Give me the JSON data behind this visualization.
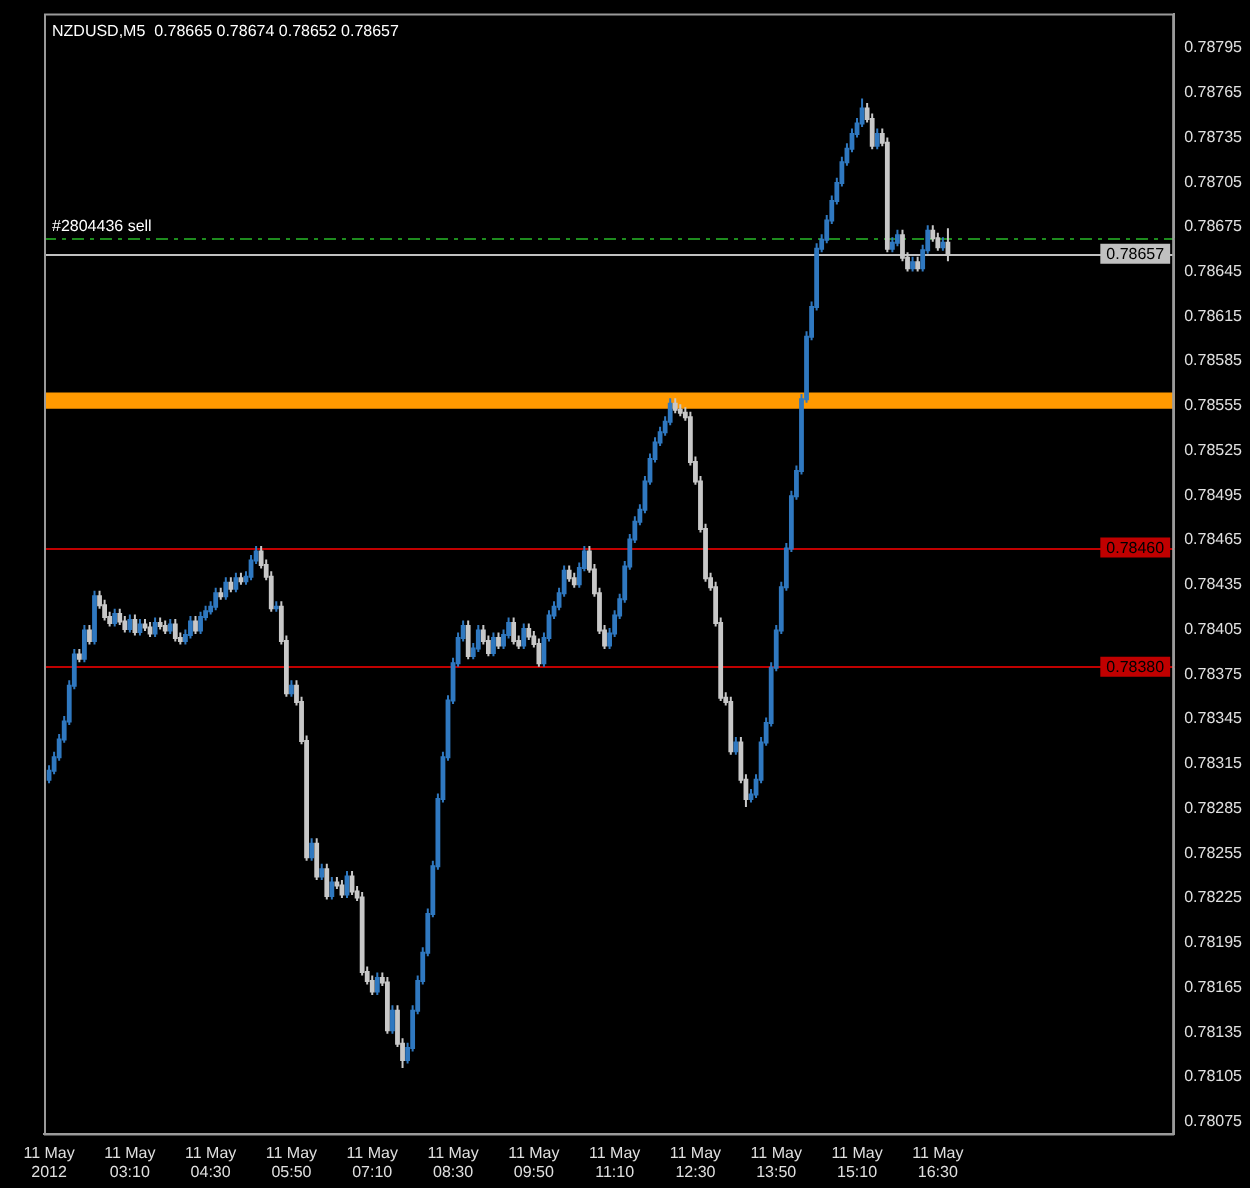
{
  "chart_data": {
    "type": "candlestick",
    "title": "NZDUSD,M5  0.78665 0.78674 0.78652 0.78657",
    "xlim": [
      "2012-05-11T01:45",
      "2012-05-11T20:24"
    ],
    "xticks": [
      {
        "value": "2012-05-11T01:50",
        "label": "11 May 2012"
      },
      {
        "value": "2012-05-11T03:10",
        "label": "11 May 03:10"
      },
      {
        "value": "2012-05-11T04:30",
        "label": "11 May 04:30"
      },
      {
        "value": "2012-05-11T05:50",
        "label": "11 May 05:50"
      },
      {
        "value": "2012-05-11T07:10",
        "label": "11 May 07:10"
      },
      {
        "value": "2012-05-11T08:30",
        "label": "11 May 08:30"
      },
      {
        "value": "2012-05-11T09:50",
        "label": "11 May 09:50"
      },
      {
        "value": "2012-05-11T11:10",
        "label": "11 May 11:10"
      },
      {
        "value": "2012-05-11T12:30",
        "label": "11 May 12:30"
      },
      {
        "value": "2012-05-11T13:50",
        "label": "11 May 13:50"
      },
      {
        "value": "2012-05-11T15:10",
        "label": "11 May 15:10"
      },
      {
        "value": "2012-05-11T16:30",
        "label": "11 May 16:30"
      }
    ],
    "ylim": [
      0.78067,
      0.78818
    ],
    "yticks": [
      0.78075,
      0.78105,
      0.78135,
      0.78165,
      0.78195,
      0.78225,
      0.78255,
      0.78285,
      0.78315,
      0.78345,
      0.78375,
      0.78405,
      0.78435,
      0.78465,
      0.78495,
      0.78525,
      0.78555,
      0.78585,
      0.78615,
      0.78645,
      0.78675,
      0.78705,
      0.78735,
      0.78765,
      0.78795
    ],
    "ref_lines": [
      {
        "axis": "y",
        "value": 0.78667,
        "label": "#2804436 sell",
        "color": "#1e8c1e",
        "line_style": "dashed"
      },
      {
        "axis": "y",
        "value": 0.78657,
        "label": "0.78657",
        "color": "#c0c0c0"
      },
      {
        "axis": "y",
        "value": 0.7846,
        "label": "0.78460",
        "color": "#c00000"
      },
      {
        "axis": "y",
        "value": 0.7838,
        "label": "0.78380",
        "color": "#c00000"
      }
    ],
    "bands": [
      {
        "axis": "y",
        "from": 0.78553,
        "to": 0.78564,
        "color": "#ff9900"
      }
    ],
    "series": [
      {
        "color": "#2f78c0",
        "x": [
          "2012-05-11T01:50",
          "2012-05-11T01:55",
          "2012-05-11T02:00",
          "2012-05-11T02:05",
          "2012-05-11T02:10",
          "2012-05-11T02:15",
          "2012-05-11T02:25",
          "2012-05-11T02:35",
          "2012-05-11T02:55",
          "2012-05-11T03:10",
          "2012-05-11T03:20",
          "2012-05-11T03:35",
          "2012-05-11T03:50",
          "2012-05-11T04:05",
          "2012-05-11T04:10",
          "2012-05-11T04:20",
          "2012-05-11T04:25",
          "2012-05-11T04:30",
          "2012-05-11T04:35",
          "2012-05-11T04:45",
          "2012-05-11T04:55",
          "2012-05-11T05:05",
          "2012-05-11T05:10",
          "2012-05-11T05:15",
          "2012-05-11T05:35",
          "2012-05-11T05:50",
          "2012-05-11T06:10",
          "2012-05-11T06:20",
          "2012-05-11T06:30",
          "2012-05-11T06:45",
          "2012-05-11T07:15",
          "2012-05-11T07:30",
          "2012-05-11T07:45",
          "2012-05-11T07:50",
          "2012-05-11T07:55",
          "2012-05-11T08:00",
          "2012-05-11T08:05",
          "2012-05-11T08:10",
          "2012-05-11T08:15",
          "2012-05-11T08:20",
          "2012-05-11T08:25",
          "2012-05-11T08:30",
          "2012-05-11T08:35",
          "2012-05-11T08:40",
          "2012-05-11T08:50",
          "2012-05-11T08:55",
          "2012-05-11T09:10",
          "2012-05-11T09:20",
          "2012-05-11T09:25",
          "2012-05-11T09:40",
          "2012-05-11T10:00",
          "2012-05-11T10:05",
          "2012-05-11T10:10",
          "2012-05-11T10:15",
          "2012-05-11T10:20",
          "2012-05-11T10:35",
          "2012-05-11T10:40",
          "2012-05-11T11:05",
          "2012-05-11T11:10",
          "2012-05-11T11:15",
          "2012-05-11T11:20",
          "2012-05-11T11:25",
          "2012-05-11T11:30",
          "2012-05-11T11:35",
          "2012-05-11T11:40",
          "2012-05-11T11:45",
          "2012-05-11T11:50",
          "2012-05-11T11:55",
          "2012-05-11T12:00",
          "2012-05-11T12:05",
          "2012-05-11T13:10",
          "2012-05-11T13:25",
          "2012-05-11T13:30",
          "2012-05-11T13:35",
          "2012-05-11T13:40",
          "2012-05-11T13:45",
          "2012-05-11T13:50",
          "2012-05-11T13:55",
          "2012-05-11T14:00",
          "2012-05-11T14:05",
          "2012-05-11T14:10",
          "2012-05-11T14:15",
          "2012-05-11T14:20",
          "2012-05-11T14:25",
          "2012-05-11T14:30",
          "2012-05-11T14:35",
          "2012-05-11T14:40",
          "2012-05-11T14:45",
          "2012-05-11T14:50",
          "2012-05-11T14:55",
          "2012-05-11T15:00",
          "2012-05-11T15:05",
          "2012-05-11T15:10",
          "2012-05-11T15:15",
          "2012-05-11T15:30",
          "2012-05-11T15:45",
          "2012-05-11T15:50",
          "2012-05-11T16:05",
          "2012-05-11T16:15",
          "2012-05-11T16:20",
          "2012-05-11T16:35"
        ],
        "ohlc": [
          [
            0.78305,
            0.78314,
            0.78302,
            0.78311
          ],
          [
            0.78311,
            0.78323,
            0.78308,
            0.7832
          ],
          [
            0.7832,
            0.78335,
            0.78317,
            0.78332
          ],
          [
            0.78332,
            0.78347,
            0.78329,
            0.78344
          ],
          [
            0.78344,
            0.78371,
            0.78341,
            0.78368
          ],
          [
            0.78368,
            0.78392,
            0.78365,
            0.78389
          ],
          [
            0.78386,
            0.78408,
            0.78383,
            0.78405
          ],
          [
            0.78398,
            0.78431,
            0.78395,
            0.78428
          ],
          [
            0.7841,
            0.78419,
            0.78407,
            0.78416
          ],
          [
            0.78406,
            0.78415,
            0.78403,
            0.78412
          ],
          [
            0.78404,
            0.78412,
            0.78401,
            0.78409
          ],
          [
            0.78403,
            0.78413,
            0.784,
            0.7841
          ],
          [
            0.78405,
            0.78412,
            0.78402,
            0.78409
          ],
          [
            0.78398,
            0.78405,
            0.78395,
            0.78402
          ],
          [
            0.78402,
            0.78414,
            0.78399,
            0.78411
          ],
          [
            0.78405,
            0.78417,
            0.78402,
            0.78414
          ],
          [
            0.78414,
            0.78421,
            0.78411,
            0.78418
          ],
          [
            0.78418,
            0.78424,
            0.78415,
            0.78421
          ],
          [
            0.78421,
            0.78433,
            0.78418,
            0.7843
          ],
          [
            0.78428,
            0.7844,
            0.78425,
            0.78437
          ],
          [
            0.78433,
            0.78443,
            0.7843,
            0.7844
          ],
          [
            0.78438,
            0.78444,
            0.78435,
            0.78441
          ],
          [
            0.78441,
            0.78455,
            0.78438,
            0.78452
          ],
          [
            0.78452,
            0.78461,
            0.78449,
            0.78458
          ],
          [
            0.7842,
            0.78424,
            0.78417,
            0.78421
          ],
          [
            0.78363,
            0.78371,
            0.7836,
            0.78368
          ],
          [
            0.78253,
            0.78265,
            0.7825,
            0.78262
          ],
          [
            0.7824,
            0.78248,
            0.78237,
            0.78245
          ],
          [
            0.78227,
            0.78239,
            0.78224,
            0.78236
          ],
          [
            0.78228,
            0.78243,
            0.78225,
            0.7824
          ],
          [
            0.78163,
            0.78175,
            0.7816,
            0.78172
          ],
          [
            0.78137,
            0.78153,
            0.78134,
            0.7815
          ],
          [
            0.78117,
            0.78128,
            0.78114,
            0.78125
          ],
          [
            0.78125,
            0.78153,
            0.78122,
            0.7815
          ],
          [
            0.7815,
            0.78173,
            0.78147,
            0.7817
          ],
          [
            0.7817,
            0.78192,
            0.78167,
            0.78189
          ],
          [
            0.78189,
            0.78218,
            0.78186,
            0.78215
          ],
          [
            0.78215,
            0.7825,
            0.78212,
            0.78247
          ],
          [
            0.78247,
            0.78295,
            0.78244,
            0.78292
          ],
          [
            0.78292,
            0.78323,
            0.78289,
            0.7832
          ],
          [
            0.7832,
            0.78361,
            0.78317,
            0.78358
          ],
          [
            0.78358,
            0.78386,
            0.78355,
            0.78383
          ],
          [
            0.78383,
            0.78403,
            0.7838,
            0.784
          ],
          [
            0.784,
            0.78411,
            0.78397,
            0.78408
          ],
          [
            0.78388,
            0.78396,
            0.78385,
            0.78393
          ],
          [
            0.78393,
            0.78408,
            0.7839,
            0.78405
          ],
          [
            0.7839,
            0.78403,
            0.78387,
            0.784
          ],
          [
            0.78395,
            0.78405,
            0.78392,
            0.78402
          ],
          [
            0.78402,
            0.78413,
            0.78399,
            0.7841
          ],
          [
            0.78395,
            0.78409,
            0.78392,
            0.78406
          ],
          [
            0.78383,
            0.78403,
            0.7838,
            0.784
          ],
          [
            0.784,
            0.78418,
            0.78397,
            0.78415
          ],
          [
            0.78415,
            0.78424,
            0.78412,
            0.78421
          ],
          [
            0.78421,
            0.78433,
            0.78418,
            0.7843
          ],
          [
            0.7843,
            0.78448,
            0.78427,
            0.78445
          ],
          [
            0.78436,
            0.7845,
            0.78433,
            0.78447
          ],
          [
            0.78447,
            0.78461,
            0.78444,
            0.78458
          ],
          [
            0.78395,
            0.78406,
            0.78392,
            0.78403
          ],
          [
            0.78403,
            0.78418,
            0.784,
            0.78415
          ],
          [
            0.78415,
            0.78429,
            0.78412,
            0.78426
          ],
          [
            0.78426,
            0.78451,
            0.78423,
            0.78448
          ],
          [
            0.78448,
            0.78469,
            0.78445,
            0.78466
          ],
          [
            0.78466,
            0.78481,
            0.78463,
            0.78478
          ],
          [
            0.78478,
            0.78489,
            0.78475,
            0.78486
          ],
          [
            0.78486,
            0.78508,
            0.78483,
            0.78505
          ],
          [
            0.78505,
            0.78523,
            0.78502,
            0.7852
          ],
          [
            0.7852,
            0.78534,
            0.78517,
            0.78531
          ],
          [
            0.78531,
            0.78541,
            0.78528,
            0.78538
          ],
          [
            0.78538,
            0.78548,
            0.78535,
            0.78545
          ],
          [
            0.78545,
            0.7856,
            0.78542,
            0.78557
          ],
          [
            0.78324,
            0.78333,
            0.78321,
            0.7833
          ],
          [
            0.78292,
            0.78298,
            0.78289,
            0.78295
          ],
          [
            0.78295,
            0.78308,
            0.78292,
            0.78305
          ],
          [
            0.78305,
            0.78333,
            0.78302,
            0.7833
          ],
          [
            0.7833,
            0.78346,
            0.78327,
            0.78343
          ],
          [
            0.78343,
            0.78383,
            0.7834,
            0.7838
          ],
          [
            0.7838,
            0.78408,
            0.78377,
            0.78405
          ],
          [
            0.78405,
            0.78437,
            0.78402,
            0.78434
          ],
          [
            0.78434,
            0.78463,
            0.78431,
            0.7846
          ],
          [
            0.7846,
            0.78498,
            0.78457,
            0.78495
          ],
          [
            0.78495,
            0.78515,
            0.78492,
            0.78512
          ],
          [
            0.78512,
            0.78563,
            0.78509,
            0.7856
          ],
          [
            0.7856,
            0.78605,
            0.78557,
            0.78602
          ],
          [
            0.78602,
            0.78625,
            0.78599,
            0.78622
          ],
          [
            0.78622,
            0.78664,
            0.78619,
            0.78661
          ],
          [
            0.78661,
            0.7867,
            0.78658,
            0.78667
          ],
          [
            0.78667,
            0.78683,
            0.78664,
            0.7868
          ],
          [
            0.7868,
            0.78696,
            0.78677,
            0.78693
          ],
          [
            0.78693,
            0.78708,
            0.7869,
            0.78705
          ],
          [
            0.78705,
            0.78722,
            0.78702,
            0.78719
          ],
          [
            0.78719,
            0.78731,
            0.78716,
            0.78728
          ],
          [
            0.78728,
            0.78741,
            0.78725,
            0.78738
          ],
          [
            0.78738,
            0.78748,
            0.78735,
            0.78745
          ],
          [
            0.78745,
            0.78761,
            0.78742,
            0.78755
          ],
          [
            0.7873,
            0.78741,
            0.78727,
            0.78738
          ],
          [
            0.78661,
            0.78668,
            0.78658,
            0.78665
          ],
          [
            0.78665,
            0.78673,
            0.78662,
            0.7867
          ],
          [
            0.78648,
            0.78655,
            0.78645,
            0.78652
          ],
          [
            0.78648,
            0.78663,
            0.78645,
            0.7866
          ],
          [
            0.7866,
            0.78676,
            0.78657,
            0.78673
          ],
          [
            0.78662,
            0.78668,
            0.78659,
            0.78665
          ]
        ]
      },
      {
        "color": "#c8c8c8",
        "x": [
          "2012-05-11T02:20",
          "2012-05-11T02:30",
          "2012-05-11T02:40",
          "2012-05-11T02:45",
          "2012-05-11T02:50",
          "2012-05-11T03:00",
          "2012-05-11T03:05",
          "2012-05-11T03:15",
          "2012-05-11T03:25",
          "2012-05-11T03:30",
          "2012-05-11T03:40",
          "2012-05-11T03:45",
          "2012-05-11T03:55",
          "2012-05-11T04:00",
          "2012-05-11T04:15",
          "2012-05-11T04:40",
          "2012-05-11T04:50",
          "2012-05-11T05:00",
          "2012-05-11T05:20",
          "2012-05-11T05:25",
          "2012-05-11T05:30",
          "2012-05-11T05:40",
          "2012-05-11T05:45",
          "2012-05-11T05:55",
          "2012-05-11T06:00",
          "2012-05-11T06:05",
          "2012-05-11T06:15",
          "2012-05-11T06:25",
          "2012-05-11T06:35",
          "2012-05-11T06:40",
          "2012-05-11T06:50",
          "2012-05-11T06:55",
          "2012-05-11T07:00",
          "2012-05-11T07:05",
          "2012-05-11T07:10",
          "2012-05-11T07:20",
          "2012-05-11T07:25",
          "2012-05-11T07:35",
          "2012-05-11T07:40",
          "2012-05-11T08:45",
          "2012-05-11T09:00",
          "2012-05-11T09:05",
          "2012-05-11T09:15",
          "2012-05-11T09:30",
          "2012-05-11T09:35",
          "2012-05-11T09:45",
          "2012-05-11T09:50",
          "2012-05-11T09:55",
          "2012-05-11T10:25",
          "2012-05-11T10:30",
          "2012-05-11T10:45",
          "2012-05-11T10:50",
          "2012-05-11T10:55",
          "2012-05-11T11:00",
          "2012-05-11T12:10",
          "2012-05-11T12:15",
          "2012-05-11T12:20",
          "2012-05-11T12:25",
          "2012-05-11T12:30",
          "2012-05-11T12:35",
          "2012-05-11T12:40",
          "2012-05-11T12:45",
          "2012-05-11T12:50",
          "2012-05-11T12:55",
          "2012-05-11T13:00",
          "2012-05-11T13:05",
          "2012-05-11T13:15",
          "2012-05-11T13:20",
          "2012-05-11T15:20",
          "2012-05-11T15:25",
          "2012-05-11T15:35",
          "2012-05-11T15:40",
          "2012-05-11T15:55",
          "2012-05-11T16:00",
          "2012-05-11T16:10",
          "2012-05-11T16:25",
          "2012-05-11T16:30",
          "2012-05-11T16:40"
        ],
        "ohlc": [
          [
            0.78389,
            0.78392,
            0.78383,
            0.78386
          ],
          [
            0.78405,
            0.78408,
            0.78395,
            0.78398
          ],
          [
            0.78428,
            0.78431,
            0.78419,
            0.78422
          ],
          [
            0.78422,
            0.78425,
            0.78411,
            0.78414
          ],
          [
            0.78414,
            0.78417,
            0.78407,
            0.7841
          ],
          [
            0.78416,
            0.78419,
            0.78408,
            0.78411
          ],
          [
            0.78411,
            0.78414,
            0.78403,
            0.78406
          ],
          [
            0.78412,
            0.78415,
            0.78401,
            0.78404
          ],
          [
            0.78409,
            0.78412,
            0.78404,
            0.78407
          ],
          [
            0.78407,
            0.7841,
            0.784,
            0.78403
          ],
          [
            0.7841,
            0.78413,
            0.78405,
            0.78408
          ],
          [
            0.78408,
            0.78411,
            0.78402,
            0.78405
          ],
          [
            0.78409,
            0.78412,
            0.78397,
            0.784
          ],
          [
            0.784,
            0.78403,
            0.78395,
            0.78398
          ],
          [
            0.78411,
            0.78414,
            0.78402,
            0.78405
          ],
          [
            0.7843,
            0.78433,
            0.78425,
            0.78428
          ],
          [
            0.78437,
            0.7844,
            0.7843,
            0.78433
          ],
          [
            0.7844,
            0.78443,
            0.78435,
            0.78438
          ],
          [
            0.78458,
            0.78461,
            0.78446,
            0.78449
          ],
          [
            0.78449,
            0.78452,
            0.78438,
            0.78441
          ],
          [
            0.78441,
            0.78444,
            0.78417,
            0.7842
          ],
          [
            0.78421,
            0.78424,
            0.78395,
            0.78398
          ],
          [
            0.78398,
            0.78401,
            0.7836,
            0.78363
          ],
          [
            0.78368,
            0.78371,
            0.78354,
            0.78357
          ],
          [
            0.78357,
            0.7836,
            0.78328,
            0.78331
          ],
          [
            0.78331,
            0.78334,
            0.7825,
            0.78253
          ],
          [
            0.78262,
            0.78265,
            0.78237,
            0.7824
          ],
          [
            0.78245,
            0.78248,
            0.78224,
            0.78227
          ],
          [
            0.78236,
            0.78239,
            0.78231,
            0.78234
          ],
          [
            0.78234,
            0.78237,
            0.78225,
            0.78228
          ],
          [
            0.7824,
            0.78243,
            0.78227,
            0.7823
          ],
          [
            0.7823,
            0.78233,
            0.78223,
            0.78226
          ],
          [
            0.78226,
            0.78229,
            0.78173,
            0.78176
          ],
          [
            0.78176,
            0.78179,
            0.78167,
            0.7817
          ],
          [
            0.7817,
            0.78173,
            0.7816,
            0.78163
          ],
          [
            0.78172,
            0.78175,
            0.78166,
            0.78169
          ],
          [
            0.78169,
            0.78172,
            0.78134,
            0.78137
          ],
          [
            0.7815,
            0.78153,
            0.78125,
            0.78128
          ],
          [
            0.78128,
            0.78131,
            0.78111,
            0.78117
          ],
          [
            0.78408,
            0.78411,
            0.78385,
            0.78388
          ],
          [
            0.78405,
            0.78408,
            0.78395,
            0.78398
          ],
          [
            0.78398,
            0.78401,
            0.78387,
            0.7839
          ],
          [
            0.784,
            0.78403,
            0.78392,
            0.78395
          ],
          [
            0.7841,
            0.78413,
            0.78395,
            0.78398
          ],
          [
            0.78398,
            0.78401,
            0.78392,
            0.78395
          ],
          [
            0.78406,
            0.78409,
            0.78398,
            0.78401
          ],
          [
            0.78401,
            0.78404,
            0.78393,
            0.78396
          ],
          [
            0.78396,
            0.78399,
            0.7838,
            0.78383
          ],
          [
            0.78445,
            0.78448,
            0.78437,
            0.7844
          ],
          [
            0.7844,
            0.78443,
            0.78433,
            0.78436
          ],
          [
            0.78458,
            0.78461,
            0.78443,
            0.78446
          ],
          [
            0.78446,
            0.78449,
            0.78427,
            0.7843
          ],
          [
            0.7843,
            0.78433,
            0.78402,
            0.78405
          ],
          [
            0.78405,
            0.78408,
            0.78392,
            0.78395
          ],
          [
            0.78557,
            0.7856,
            0.7855,
            0.78553
          ],
          [
            0.78553,
            0.78556,
            0.78548,
            0.78551
          ],
          [
            0.78551,
            0.78554,
            0.78545,
            0.78548
          ],
          [
            0.78548,
            0.78551,
            0.78515,
            0.78518
          ],
          [
            0.78518,
            0.78521,
            0.78502,
            0.78505
          ],
          [
            0.78505,
            0.78508,
            0.7847,
            0.78473
          ],
          [
            0.78473,
            0.78476,
            0.78437,
            0.7844
          ],
          [
            0.7844,
            0.78443,
            0.78431,
            0.78434
          ],
          [
            0.78434,
            0.78437,
            0.78407,
            0.7841
          ],
          [
            0.7841,
            0.78413,
            0.78357,
            0.7836
          ],
          [
            0.7836,
            0.78363,
            0.78354,
            0.78357
          ],
          [
            0.78357,
            0.7836,
            0.78321,
            0.78324
          ],
          [
            0.7833,
            0.78333,
            0.78302,
            0.78305
          ],
          [
            0.78305,
            0.78308,
            0.78286,
            0.78292
          ],
          [
            0.78755,
            0.78758,
            0.78745,
            0.78748
          ],
          [
            0.78748,
            0.78751,
            0.78727,
            0.7873
          ],
          [
            0.78738,
            0.78741,
            0.78729,
            0.78732
          ],
          [
            0.78732,
            0.78735,
            0.78658,
            0.78661
          ],
          [
            0.7867,
            0.78673,
            0.78652,
            0.78655
          ],
          [
            0.78655,
            0.78658,
            0.78645,
            0.78648
          ],
          [
            0.78652,
            0.78655,
            0.78645,
            0.78648
          ],
          [
            0.78673,
            0.78676,
            0.78665,
            0.78668
          ],
          [
            0.78668,
            0.78671,
            0.78659,
            0.78662
          ],
          [
            0.78665,
            0.78674,
            0.78652,
            0.78657
          ]
        ]
      }
    ]
  }
}
